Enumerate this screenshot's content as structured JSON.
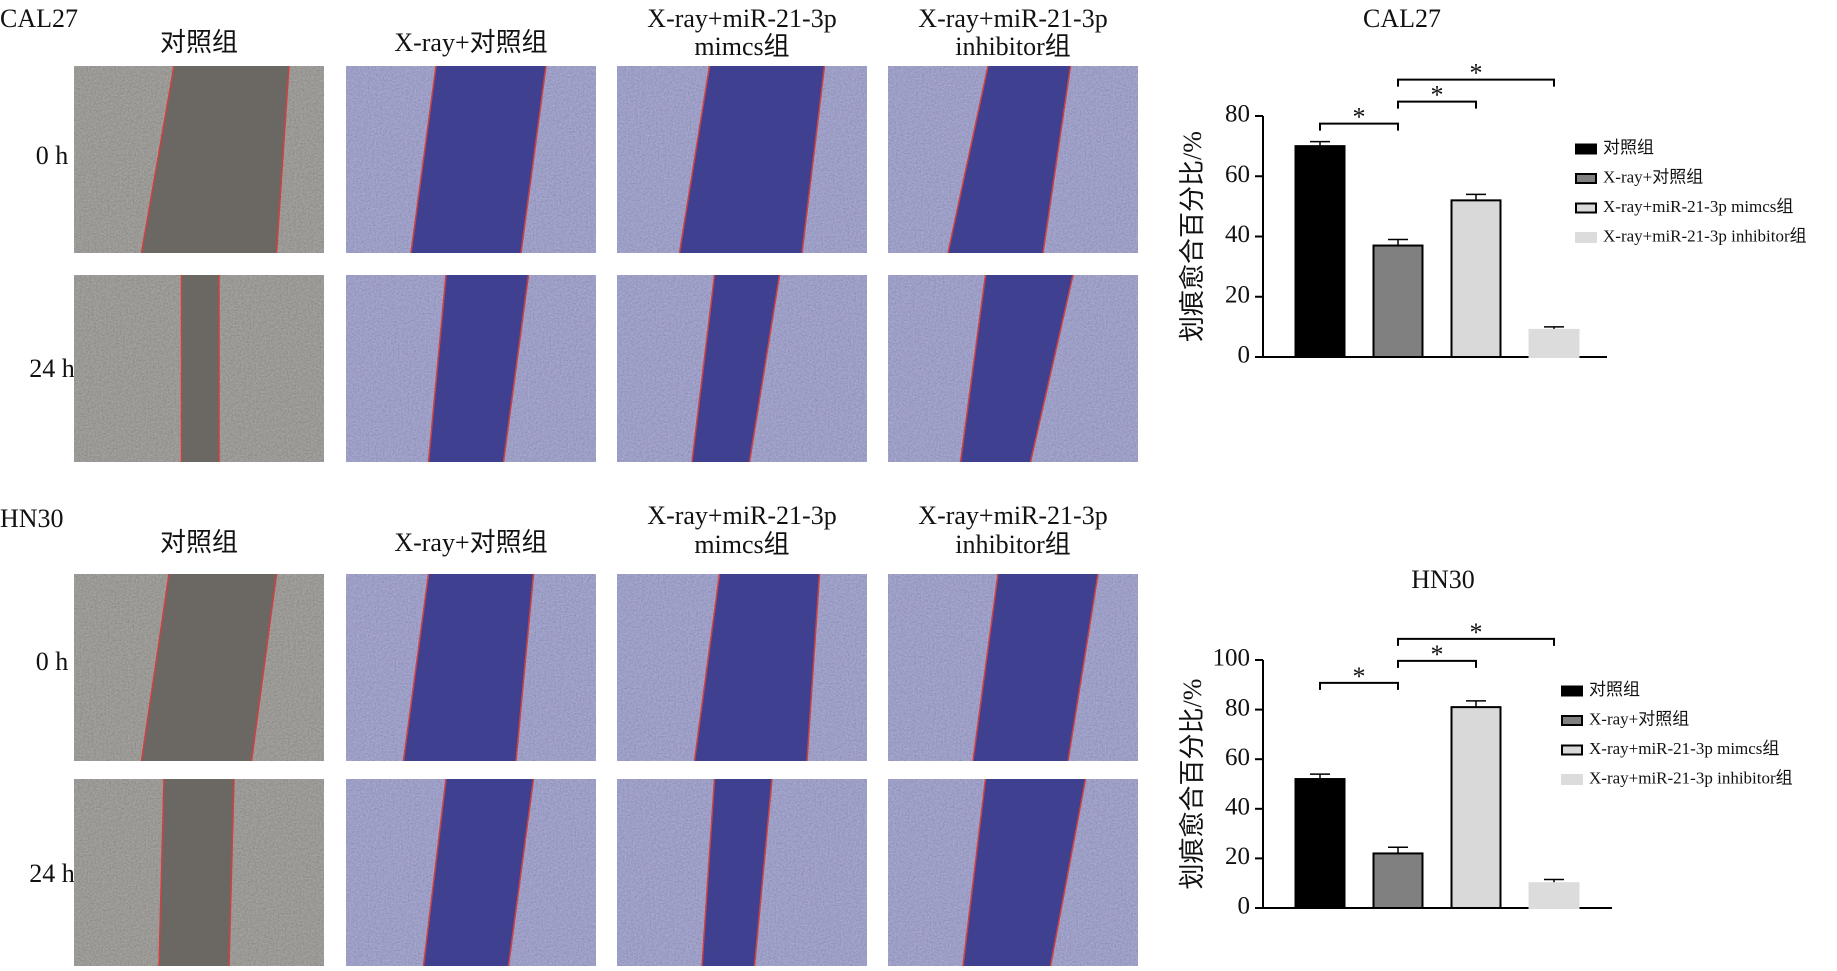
{
  "figure": {
    "panels": [
      {
        "label": "CAL27",
        "columns": [
          [
            "对照组"
          ],
          [
            "X-ray+对照组"
          ],
          [
            "X-ray+miR-21-3p",
            "mimcs组"
          ],
          [
            "X-ray+miR-21-3p",
            "inhibitor组"
          ]
        ],
        "rows": [
          "0 h",
          "24 h"
        ]
      },
      {
        "label": "HN30",
        "columns": [
          [
            "对照组"
          ],
          [
            "X-ray+对照组"
          ],
          [
            "X-ray+miR-21-3p",
            "mimcs组"
          ],
          [
            "X-ray+miR-21-3p",
            "inhibitor组"
          ]
        ],
        "rows": [
          "0 h",
          "24 h"
        ]
      }
    ]
  },
  "chart_data": [
    {
      "type": "bar",
      "title": "CAL27",
      "ylabel": "划痕愈合百分比/%",
      "categories": [
        "对照组",
        "X-ray+对照组",
        "X-ray+miR-21-3p mimcs组",
        "X-ray+miR-21-3p inhibitor组"
      ],
      "values": [
        70,
        37,
        52,
        9
      ],
      "errors": [
        1.5,
        2,
        2,
        1
      ],
      "colors": [
        "#000000",
        "#808080",
        "#d9d9d9",
        "#dcdcdc"
      ],
      "edgecolors": [
        "#000000",
        "#000000",
        "#000000",
        "#dcdcdc"
      ],
      "ylim": [
        0,
        80
      ],
      "yticks": [
        0,
        20,
        40,
        60,
        80
      ],
      "annotations": [
        {
          "pair": [
            "对照组",
            "X-ray+对照组"
          ],
          "label": "*"
        },
        {
          "pair": [
            "X-ray+对照组",
            "X-ray+miR-21-3p mimcs组"
          ],
          "label": "*"
        },
        {
          "pair": [
            "X-ray+对照组",
            "X-ray+miR-21-3p inhibitor组"
          ],
          "label": "*"
        }
      ]
    },
    {
      "type": "bar",
      "title": "HN30",
      "ylabel": "划痕愈合百分比/%",
      "categories": [
        "对照组",
        "X-ray+对照组",
        "X-ray+miR-21-3p mimcs组",
        "X-ray+miR-21-3p inhibitor组"
      ],
      "values": [
        52,
        22,
        81,
        10
      ],
      "errors": [
        2,
        2.5,
        2.5,
        1.5
      ],
      "colors": [
        "#000000",
        "#808080",
        "#d9d9d9",
        "#dcdcdc"
      ],
      "edgecolors": [
        "#000000",
        "#000000",
        "#000000",
        "#dcdcdc"
      ],
      "ylim": [
        0,
        100
      ],
      "yticks": [
        0,
        20,
        40,
        60,
        80,
        100
      ],
      "annotations": [
        {
          "pair": [
            "对照组",
            "X-ray+对照组"
          ],
          "label": "*"
        },
        {
          "pair": [
            "X-ray+对照组",
            "X-ray+miR-21-3p mimcs组"
          ],
          "label": "*"
        },
        {
          "pair": [
            "X-ray+对照组",
            "X-ray+miR-21-3p inhibitor组"
          ],
          "label": "*"
        }
      ]
    }
  ]
}
